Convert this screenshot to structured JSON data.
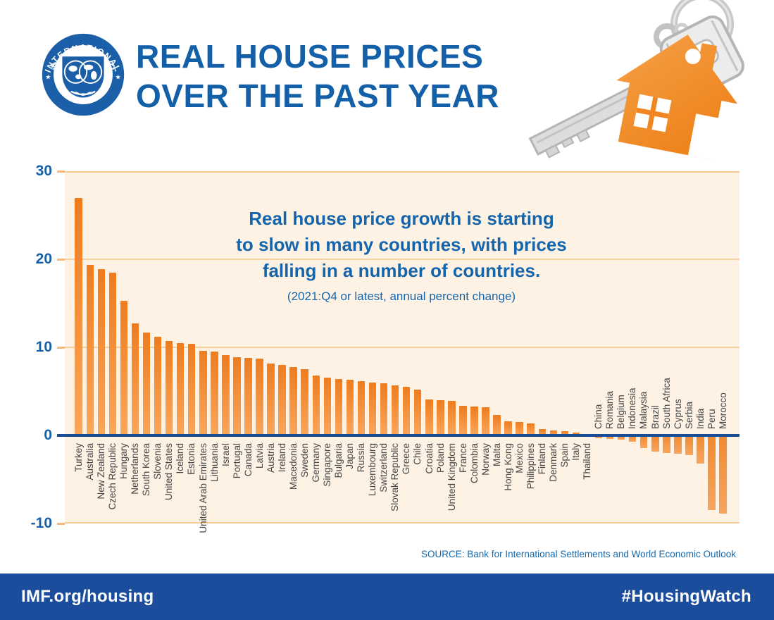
{
  "header": {
    "title_line1": "REAL HOUSE PRICES",
    "title_line2": "OVER THE PAST YEAR",
    "logo": {
      "top": "INTERNATIONAL",
      "bottom": "MONETARY FUND",
      "star": "★"
    }
  },
  "chart_data": {
    "type": "bar",
    "title": "Real house price growth is starting to slow in many countries, with prices falling in a number of countries.",
    "annotation_lines": [
      "Real house price growth is starting",
      "to slow in many countries, with prices",
      "falling in a number of countries."
    ],
    "subtitle": "(2021:Q4 or latest, annual percent change)",
    "xlabel": "",
    "ylabel": "annual percent change",
    "ylim": [
      -10,
      30
    ],
    "yticks": [
      30,
      20,
      10,
      0,
      -10
    ],
    "grid": true,
    "legend": "none",
    "categories": [
      "Turkey",
      "Australia",
      "New Zealand",
      "Czech Republic",
      "Hungary",
      "Netherlands",
      "South Korea",
      "Slovenia",
      "United States",
      "Iceland",
      "Estonia",
      "United Arab Emirates",
      "Lithuania",
      "Israel",
      "Portugal",
      "Canada",
      "Latvia",
      "Austria",
      "Ireland",
      "Macedonia",
      "Sweden",
      "Germany",
      "Singapore",
      "Bulgaria",
      "Japan",
      "Russia",
      "Luxembourg",
      "Switzerland",
      "Slovak Republic",
      "Greece",
      "Chile",
      "Croatia",
      "Poland",
      "United Kingdom",
      "France",
      "Colombia",
      "Norway",
      "Malta",
      "Hong Kong",
      "Mexico",
      "Philippines",
      "Finland",
      "Denmark",
      "Spain",
      "Italy",
      "Thailand",
      "China",
      "Romania",
      "Belgium",
      "Indonesia",
      "Malaysia",
      "Brazil",
      "South Africa",
      "Cyprus",
      "Serbia",
      "India",
      "Peru",
      "Morocco"
    ],
    "values": [
      27.0,
      19.4,
      18.9,
      18.5,
      15.3,
      12.7,
      11.7,
      11.2,
      10.7,
      10.5,
      10.4,
      9.6,
      9.5,
      9.1,
      8.9,
      8.8,
      8.7,
      8.2,
      8.0,
      7.8,
      7.5,
      6.8,
      6.6,
      6.4,
      6.3,
      6.2,
      6.0,
      5.9,
      5.7,
      5.5,
      5.2,
      4.1,
      4.0,
      3.9,
      3.4,
      3.3,
      3.2,
      2.3,
      1.6,
      1.5,
      1.4,
      0.7,
      0.6,
      0.5,
      0.3,
      0.1,
      -0.3,
      -0.4,
      -0.5,
      -0.7,
      -1.4,
      -1.8,
      -2.0,
      -2.1,
      -2.2,
      -3.2,
      -8.5,
      -8.9
    ],
    "bar_color_top": "#ee7c1e",
    "bar_color_bottom": "#f9a65c"
  },
  "source": "SOURCE: Bank for International Settlements and World Economic Outlook",
  "footer": {
    "left": "IMF.org/housing",
    "right": "#HousingWatch"
  },
  "colors": {
    "title_blue": "#1460a8",
    "axis_navy": "#1a4c96",
    "footer_blue": "#1b4d9c",
    "plot_background": "#fdf2e4",
    "gridline_orange": "#f9d1a0",
    "house_orange": "#ef8120"
  }
}
